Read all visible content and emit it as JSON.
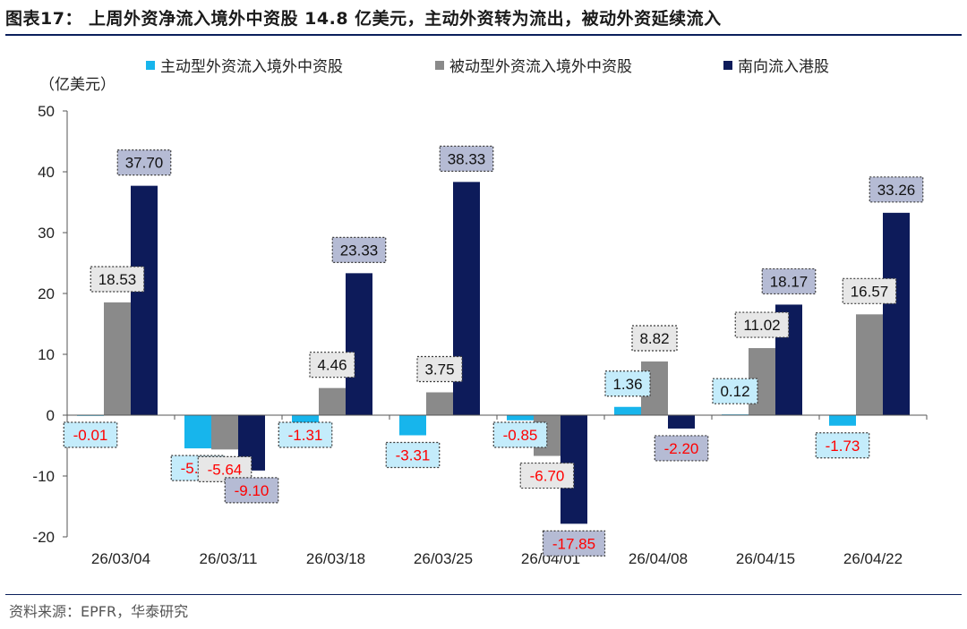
{
  "title": "图表17： 上周外资净流入境外中资股 14.8 亿美元，主动外资转为流出，被动外资延续流入",
  "unit_label": "（亿美元）",
  "source": "资料来源：EPFR，华泰研究",
  "colors": {
    "active": "#17b5ec",
    "passive": "#8a8a8a",
    "southbound": "#0d1b5a",
    "active_box": "#c4ecfb",
    "passive_box": "#e7e7e7",
    "south_box": "#b5bbd4",
    "positive_text": "#111111",
    "negative_text": "#ff0000",
    "axis": "#555555"
  },
  "chart_data": {
    "type": "bar",
    "categories": [
      "26/03/04",
      "26/03/11",
      "26/03/18",
      "26/03/25",
      "26/04/01",
      "26/04/08",
      "26/04/15",
      "26/04/22"
    ],
    "ylim": [
      -20,
      50
    ],
    "yticks": [
      -20,
      -10,
      0,
      10,
      20,
      30,
      40,
      50
    ],
    "series": [
      {
        "name": "主动型外资流入境外中资股",
        "values": [
          -0.01,
          -5.46,
          -1.31,
          -3.31,
          -0.85,
          1.36,
          0.12,
          -1.73
        ],
        "labels": [
          "-0.01",
          "-5.46",
          "-1.31",
          "-3.31",
          "-0.85",
          "1.36",
          "0.12",
          "-1.73"
        ]
      },
      {
        "name": "被动型外资流入境外中资股",
        "values": [
          18.53,
          -5.64,
          4.46,
          3.75,
          -6.7,
          8.82,
          11.02,
          16.57
        ],
        "labels": [
          "18.53",
          "-5.64",
          "4.46",
          "3.75",
          "-6.70",
          "8.82",
          "11.02",
          "16.57"
        ]
      },
      {
        "name": "南向流入港股",
        "values": [
          37.7,
          -9.1,
          23.33,
          38.33,
          -17.85,
          -2.2,
          18.17,
          33.26
        ],
        "labels": [
          "37.70",
          "-9.10",
          "23.33",
          "38.33",
          "-17.85",
          "-2.20",
          "18.17",
          "33.26"
        ]
      }
    ]
  }
}
